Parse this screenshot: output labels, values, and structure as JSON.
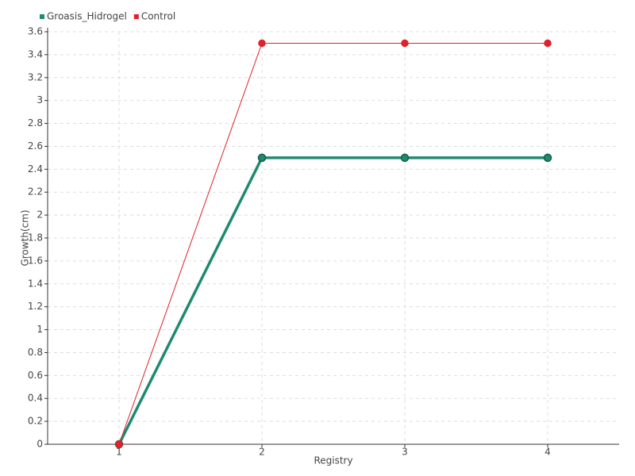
{
  "chart_data": {
    "type": "line",
    "categories": [
      "1",
      "2",
      "3",
      "4"
    ],
    "series": [
      {
        "name": "Groasis_Hidrogel",
        "color": "#1f8a70",
        "values": [
          0,
          2.5,
          2.5,
          2.5
        ]
      },
      {
        "name": "Control",
        "color": "#e0202a",
        "values": [
          0,
          3.5,
          3.5,
          3.5
        ]
      }
    ],
    "x_label": "Registry",
    "y_label": "Growth(cm)",
    "ylim": [
      0,
      3.6
    ],
    "yticks": [
      0,
      0.2,
      0.4,
      0.6,
      0.8,
      1,
      1.2,
      1.4,
      1.6,
      1.8,
      2,
      2.2,
      2.4,
      2.6,
      2.8,
      3,
      3.2,
      3.4,
      3.6
    ],
    "grid": true,
    "legend": "top-left"
  }
}
